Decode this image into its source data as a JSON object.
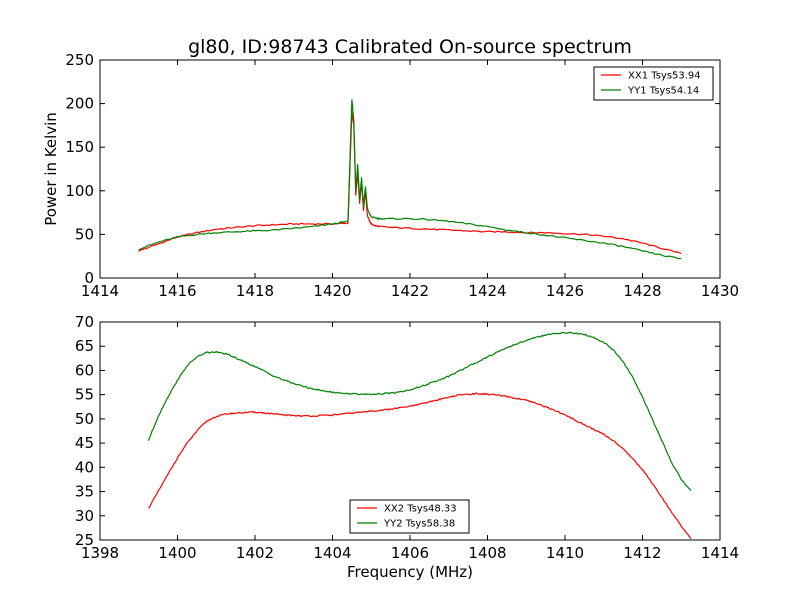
{
  "figure": {
    "title": "gl80, ID:98743 Calibrated On-source spectrum",
    "xlabel": "Frequency (MHz)"
  },
  "colors": {
    "red": "#ff0000",
    "green": "#008000"
  },
  "chart_data": [
    {
      "type": "line",
      "ylabel": "Power in Kelvin",
      "xlim": [
        1414,
        1430
      ],
      "ylim": [
        0,
        250
      ],
      "xticks": [
        1414,
        1416,
        1418,
        1420,
        1422,
        1424,
        1426,
        1428,
        1430
      ],
      "yticks": [
        0,
        50,
        100,
        150,
        200,
        250
      ],
      "legend_position": "top-right",
      "series": [
        {
          "name": "XX1 Tsys53.94",
          "color": "#ff0000",
          "x": [
            1415.0,
            1415.5,
            1416.0,
            1416.5,
            1417.0,
            1417.5,
            1418.0,
            1418.5,
            1419.0,
            1419.5,
            1420.0,
            1420.4,
            1420.5,
            1420.55,
            1420.6,
            1420.65,
            1420.7,
            1420.75,
            1420.8,
            1420.85,
            1420.9,
            1420.95,
            1421.0,
            1421.1,
            1421.2,
            1421.5,
            1422.0,
            1422.5,
            1423.0,
            1423.5,
            1424.0,
            1424.5,
            1425.0,
            1425.5,
            1426.0,
            1426.5,
            1427.0,
            1427.5,
            1428.0,
            1428.5,
            1429.0
          ],
          "y": [
            31,
            39,
            47,
            52,
            56,
            58,
            60,
            61,
            62,
            62,
            62,
            63,
            190,
            175,
            95,
            120,
            86,
            110,
            78,
            100,
            72,
            66,
            62,
            60,
            59,
            58,
            57,
            56,
            55,
            54,
            53,
            53,
            52,
            52,
            51,
            50,
            48,
            45,
            40,
            34,
            28
          ]
        },
        {
          "name": "YY1 Tsys54.14",
          "color": "#008000",
          "x": [
            1415.0,
            1415.5,
            1416.0,
            1416.5,
            1417.0,
            1417.5,
            1418.0,
            1418.5,
            1419.0,
            1419.5,
            1420.0,
            1420.4,
            1420.5,
            1420.55,
            1420.6,
            1420.65,
            1420.7,
            1420.75,
            1420.8,
            1420.85,
            1420.9,
            1420.95,
            1421.0,
            1421.1,
            1421.2,
            1421.5,
            1422.0,
            1422.5,
            1423.0,
            1423.5,
            1424.0,
            1424.5,
            1425.0,
            1425.5,
            1426.0,
            1426.5,
            1427.0,
            1427.5,
            1428.0,
            1428.5,
            1429.0
          ],
          "y": [
            33,
            41,
            47,
            50,
            52,
            53,
            54,
            55,
            57,
            59,
            62,
            65,
            205,
            180,
            100,
            130,
            90,
            115,
            82,
            105,
            80,
            74,
            70,
            69,
            68,
            68,
            68,
            67,
            65,
            62,
            59,
            55,
            52,
            49,
            46,
            43,
            40,
            36,
            31,
            26,
            22
          ]
        }
      ]
    },
    {
      "type": "line",
      "ylabel": "",
      "xlim": [
        1398,
        1414
      ],
      "ylim": [
        25,
        70
      ],
      "xticks": [
        1398,
        1400,
        1402,
        1404,
        1406,
        1408,
        1410,
        1412,
        1414
      ],
      "yticks": [
        25,
        30,
        35,
        40,
        45,
        50,
        55,
        60,
        65,
        70
      ],
      "legend_position": "bottom-center",
      "series": [
        {
          "name": "XX2 Tsys48.33",
          "color": "#ff0000",
          "x": [
            1399.25,
            1399.5,
            1399.75,
            1400.0,
            1400.25,
            1400.5,
            1400.75,
            1401.0,
            1401.25,
            1401.5,
            1401.75,
            1402.0,
            1402.25,
            1402.5,
            1402.75,
            1403.0,
            1403.25,
            1403.5,
            1403.75,
            1404.0,
            1404.25,
            1404.5,
            1404.75,
            1405.0,
            1405.25,
            1405.5,
            1405.75,
            1406.0,
            1406.25,
            1406.5,
            1406.75,
            1407.0,
            1407.25,
            1407.5,
            1407.75,
            1408.0,
            1408.25,
            1408.5,
            1408.75,
            1409.0,
            1409.25,
            1409.5,
            1409.75,
            1410.0,
            1410.25,
            1410.5,
            1410.75,
            1411.0,
            1411.25,
            1411.5,
            1411.75,
            1412.0,
            1412.25,
            1412.5,
            1412.75,
            1413.0,
            1413.25
          ],
          "y": [
            31.5,
            35,
            38.5,
            42,
            45,
            47.5,
            49.5,
            50.5,
            51,
            51.2,
            51.3,
            51.4,
            51.2,
            51,
            50.8,
            50.7,
            50.6,
            50.6,
            50.7,
            50.8,
            51,
            51.2,
            51.4,
            51.6,
            51.8,
            52,
            52.3,
            52.6,
            53,
            53.5,
            54,
            54.5,
            54.9,
            55.1,
            55.2,
            55.1,
            54.9,
            54.6,
            54.2,
            53.8,
            53.2,
            52.5,
            51.7,
            50.8,
            49.8,
            48.8,
            47.8,
            46.8,
            45.5,
            43.8,
            41.8,
            39.5,
            36.8,
            33.8,
            30.8,
            27.8,
            25.3
          ]
        },
        {
          "name": "YY2 Tsys58.38",
          "color": "#008000",
          "x": [
            1399.25,
            1399.5,
            1399.75,
            1400.0,
            1400.25,
            1400.5,
            1400.75,
            1401.0,
            1401.25,
            1401.5,
            1401.75,
            1402.0,
            1402.25,
            1402.5,
            1402.75,
            1403.0,
            1403.25,
            1403.5,
            1403.75,
            1404.0,
            1404.25,
            1404.5,
            1404.75,
            1405.0,
            1405.25,
            1405.5,
            1405.75,
            1406.0,
            1406.25,
            1406.5,
            1406.75,
            1407.0,
            1407.25,
            1407.5,
            1407.75,
            1408.0,
            1408.25,
            1408.5,
            1408.75,
            1409.0,
            1409.25,
            1409.5,
            1409.75,
            1410.0,
            1410.25,
            1410.5,
            1410.75,
            1411.0,
            1411.25,
            1411.5,
            1411.75,
            1412.0,
            1412.25,
            1412.5,
            1412.75,
            1413.0,
            1413.25
          ],
          "y": [
            45.5,
            50.5,
            54.5,
            58,
            61,
            62.8,
            63.7,
            63.8,
            63.4,
            62.6,
            61.7,
            60.8,
            59.8,
            58.8,
            58,
            57.3,
            56.7,
            56.2,
            55.8,
            55.5,
            55.3,
            55.2,
            55.1,
            55.1,
            55.2,
            55.3,
            55.6,
            56,
            56.6,
            57.3,
            58,
            58.8,
            59.8,
            60.8,
            61.8,
            62.8,
            63.8,
            64.7,
            65.5,
            66.2,
            66.8,
            67.3,
            67.6,
            67.8,
            67.7,
            67.4,
            66.8,
            65.8,
            64.2,
            61.8,
            58.5,
            54.5,
            50,
            45.5,
            41,
            37.5,
            35.2
          ]
        }
      ]
    }
  ]
}
